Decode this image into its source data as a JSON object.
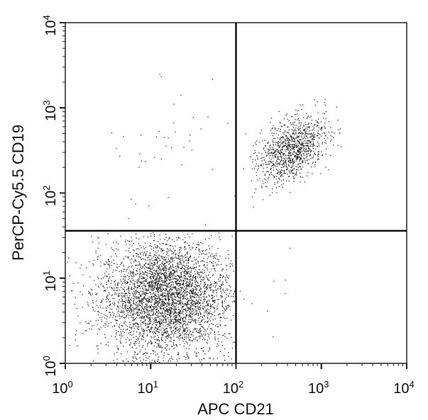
{
  "chart_data": {
    "type": "scatter",
    "title": "",
    "xlabel": "APC CD21",
    "ylabel": "PerCP-Cy5.5 CD19",
    "xscale": "log",
    "yscale": "log",
    "xlim": [
      1,
      10000
    ],
    "ylim": [
      1,
      10000
    ],
    "x_ticks": [
      {
        "base": "10",
        "exp": "0"
      },
      {
        "base": "10",
        "exp": "1"
      },
      {
        "base": "10",
        "exp": "2"
      },
      {
        "base": "10",
        "exp": "3"
      },
      {
        "base": "10",
        "exp": "4"
      }
    ],
    "y_ticks": [
      {
        "base": "10",
        "exp": "0"
      },
      {
        "base": "10",
        "exp": "1"
      },
      {
        "base": "10",
        "exp": "2"
      },
      {
        "base": "10",
        "exp": "3"
      },
      {
        "base": "10",
        "exp": "4"
      }
    ],
    "quadrant_gates": {
      "x": 100,
      "y": 36
    },
    "grid": false,
    "legend": "none",
    "point_color": "#111111",
    "populations": [
      {
        "quadrant": "lower-left",
        "center": [
          15,
          6
        ],
        "log_spread": [
          0.38,
          0.33
        ],
        "approx_events": 4200
      },
      {
        "quadrant": "upper-right",
        "center": [
          450,
          330
        ],
        "log_spread": [
          0.2,
          0.17
        ],
        "approx_events": 1100
      },
      {
        "quadrant": "upper-left",
        "center": [
          20,
          300
        ],
        "log_spread": [
          0.5,
          0.4
        ],
        "approx_events": 45
      },
      {
        "quadrant": "lower-right",
        "center": [
          180,
          8
        ],
        "log_spread": [
          0.2,
          0.4
        ],
        "approx_events": 12
      }
    ]
  }
}
